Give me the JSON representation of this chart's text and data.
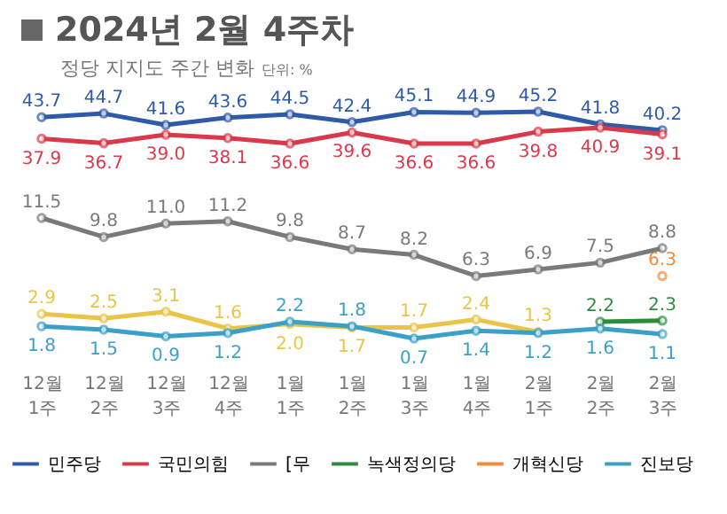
{
  "chart_data": [
    {
      "type": "line",
      "title": "2024년 2월 4주차",
      "subtitle": "정당 지지도 주간 변화",
      "annotations": [
        "단위: %"
      ],
      "categories": [
        "12월 1주",
        "12월 2주",
        "12월 3주",
        "12월 4주",
        "1월 1주",
        "1월 2주",
        "1월 3주",
        "1월 4주",
        "2월 1주",
        "2월 2주",
        "2월 3주"
      ],
      "tick_labels": false,
      "marker": "circle",
      "legend": "bottom",
      "series": [
        {
          "name": "민주당",
          "color": "#2f5aa8",
          "values": [
            43.7,
            44.7,
            41.6,
            43.6,
            44.5,
            42.4,
            45.1,
            44.9,
            45.2,
            41.8,
            40.2
          ],
          "value_labels": [
            "43.7",
            "44.7",
            "41.6",
            "43.6",
            "44.5",
            "42.4",
            "45.1",
            "44.9",
            "45.2",
            "41.8",
            "40.2"
          ]
        },
        {
          "name": "국민의힘",
          "color": "#d9394a",
          "values": [
            37.9,
            36.7,
            39.0,
            38.1,
            36.6,
            39.6,
            36.6,
            36.6,
            39.8,
            40.9,
            39.1
          ],
          "value_labels": [
            "37.9",
            "36.7",
            "39.0",
            "38.1",
            "36.6",
            "39.6",
            "36.6",
            "36.6",
            "39.8",
            "40.9",
            "39.1"
          ]
        }
      ]
    },
    {
      "type": "line",
      "categories": [
        "12월 1주",
        "12월 2주",
        "12월 3주",
        "12월 4주",
        "1월 1주",
        "1월 2주",
        "1월 3주",
        "1월 4주",
        "2월 1주",
        "2월 2주",
        "2월 3주"
      ],
      "tick_labels": "x",
      "marker": "circle",
      "legend": "bottom",
      "series": [
        {
          "name": "[무",
          "color": "#7a7a7a",
          "values": [
            11.5,
            9.8,
            11.0,
            11.2,
            9.8,
            8.7,
            8.2,
            6.3,
            6.9,
            7.5,
            8.8
          ],
          "value_labels": [
            "11.5",
            "9.8",
            "11.0",
            "11.2",
            "9.8",
            "8.7",
            "8.2",
            "6.3",
            "6.9",
            "7.5",
            "8.8"
          ]
        },
        {
          "color": "#e8c547",
          "values": [
            2.9,
            2.5,
            3.1,
            1.6,
            2.0,
            1.7,
            1.7,
            2.4,
            1.3,
            null,
            null
          ],
          "value_labels": [
            "2.9",
            "2.5",
            "3.1",
            "1.6",
            "2.0",
            "1.7",
            "1.7",
            "2.4",
            "1.3",
            null,
            null
          ]
        },
        {
          "name": "녹색정의당",
          "color": "#2e8b3e",
          "values": [
            null,
            null,
            null,
            null,
            null,
            null,
            null,
            null,
            null,
            2.2,
            2.3
          ],
          "value_labels": [
            null,
            null,
            null,
            null,
            null,
            null,
            null,
            null,
            null,
            "2.2",
            "2.3"
          ]
        },
        {
          "name": "개혁신당",
          "color": "#f08a3c",
          "values": [
            null,
            null,
            null,
            null,
            null,
            null,
            null,
            null,
            null,
            null,
            6.3
          ],
          "value_labels": [
            null,
            null,
            null,
            null,
            null,
            null,
            null,
            null,
            null,
            null,
            "6.3"
          ]
        },
        {
          "name": "진보당",
          "color": "#3aa0c8",
          "values": [
            1.8,
            1.5,
            0.9,
            1.2,
            2.2,
            1.8,
            0.7,
            1.4,
            1.2,
            1.6,
            1.1
          ],
          "value_labels": [
            "1.8",
            "1.5",
            "0.9",
            "1.2",
            "2.2",
            "1.8",
            "0.7",
            "1.4",
            "1.2",
            "1.6",
            "1.1"
          ]
        }
      ]
    }
  ]
}
